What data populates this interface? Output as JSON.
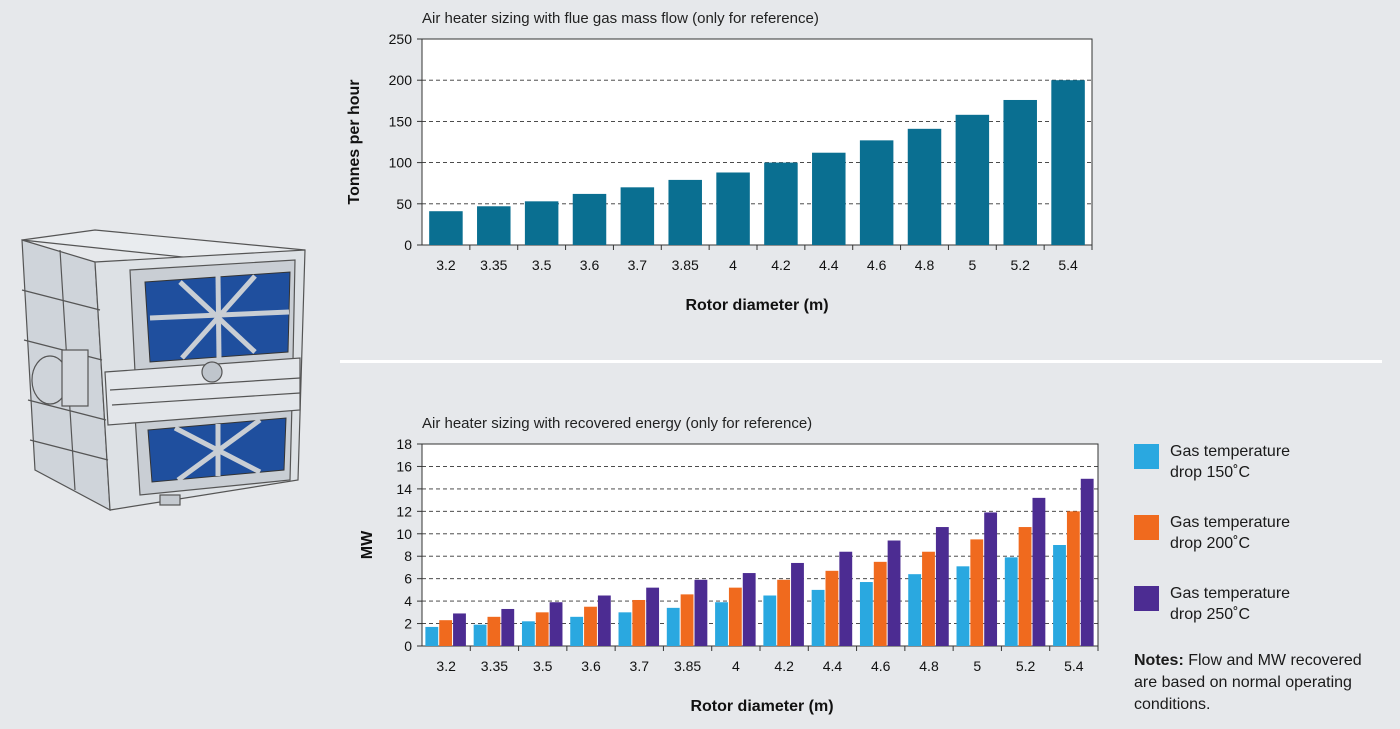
{
  "colors": {
    "background": "#e6e8eb",
    "mass_bar": "#0a6f91",
    "s150": "#2aa8e0",
    "s200": "#f06a1e",
    "s250": "#4c2c92"
  },
  "chart_data": [
    {
      "type": "bar",
      "title": "Air heater sizing with flue gas mass flow (only for reference)",
      "xlabel": "Rotor diameter (m)",
      "ylabel": "Tonnes per hour",
      "categories": [
        "3.2",
        "3.35",
        "3.5",
        "3.6",
        "3.7",
        "3.85",
        "4",
        "4.2",
        "4.4",
        "4.6",
        "4.8",
        "5",
        "5.2",
        "5.4"
      ],
      "values": [
        41,
        47,
        53,
        62,
        70,
        79,
        88,
        100,
        112,
        127,
        141,
        158,
        176,
        200
      ],
      "ylim": [
        0,
        250
      ],
      "yticks": [
        0,
        50,
        100,
        150,
        200,
        250
      ],
      "grid": "horizontal dashed"
    },
    {
      "type": "bar",
      "title": "Air heater sizing with recovered energy (only for reference)",
      "xlabel": "Rotor diameter (m)",
      "ylabel": "MW",
      "categories": [
        "3.2",
        "3.35",
        "3.5",
        "3.6",
        "3.7",
        "3.85",
        "4",
        "4.2",
        "4.4",
        "4.6",
        "4.8",
        "5",
        "5.2",
        "5.4"
      ],
      "series": [
        {
          "name": "Gas temperature drop 150˚C",
          "values": [
            1.7,
            1.9,
            2.2,
            2.6,
            3.0,
            3.4,
            3.9,
            4.5,
            5.0,
            5.7,
            6.4,
            7.1,
            7.9,
            9.0
          ]
        },
        {
          "name": "Gas temperature drop 200˚C",
          "values": [
            2.3,
            2.6,
            3.0,
            3.5,
            4.1,
            4.6,
            5.2,
            5.9,
            6.7,
            7.5,
            8.4,
            9.5,
            10.6,
            12.0
          ]
        },
        {
          "name": "Gas temperature drop 250˚C",
          "values": [
            2.9,
            3.3,
            3.9,
            4.5,
            5.2,
            5.9,
            6.5,
            7.4,
            8.4,
            9.4,
            10.6,
            11.9,
            13.2,
            14.9
          ]
        }
      ],
      "ylim": [
        0,
        18
      ],
      "yticks": [
        0,
        2,
        4,
        6,
        8,
        10,
        12,
        14,
        16,
        18
      ],
      "grid": "horizontal dashed",
      "legend_position": "right"
    }
  ],
  "legend": {
    "items": [
      {
        "line1": "Gas temperature",
        "line2": "drop 150˚C"
      },
      {
        "line1": "Gas temperature",
        "line2": "drop 200˚C"
      },
      {
        "line1": "Gas temperature",
        "line2": "drop 250˚C"
      }
    ]
  },
  "notes": {
    "label": "Notes:",
    "text": " Flow and MW recovered are based on normal operating conditions."
  }
}
